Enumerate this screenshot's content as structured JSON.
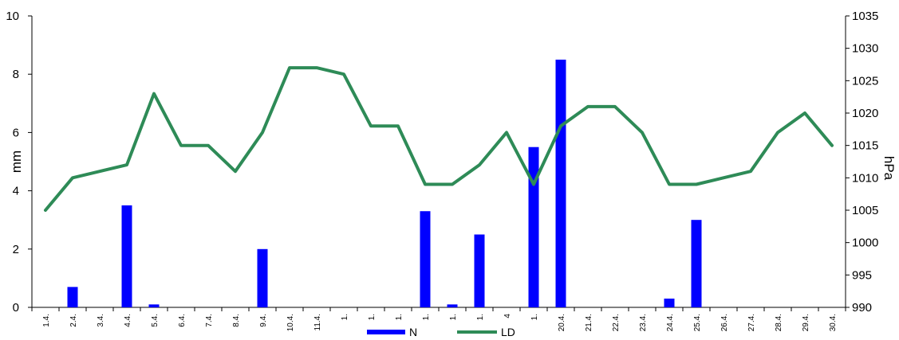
{
  "chart_data": {
    "type": "bar+line",
    "categories": [
      "1.4.",
      "2.4.",
      "3.4.",
      "4.4.",
      "5.4.",
      "6.4.",
      "7.4.",
      "8.4.",
      "9.4.",
      "10.4.",
      "11.4.",
      "1.",
      "1.",
      "1.",
      "1.",
      "1.",
      "1.",
      "4",
      "1.",
      "20.4.",
      "21.4.",
      "22.4.",
      "23.4.",
      "24.4.",
      "25.4.",
      "26.4.",
      "27.4.",
      "28.4.",
      "29.4.",
      "30.4."
    ],
    "series": [
      {
        "name": "N",
        "type": "bar",
        "axis": "left",
        "color": "#0000ff",
        "values": [
          0,
          0.7,
          0,
          3.5,
          0.1,
          0,
          0,
          0,
          2.0,
          0,
          0,
          0,
          0,
          0,
          3.3,
          0.1,
          2.5,
          0,
          5.5,
          8.5,
          0,
          0,
          0,
          0.3,
          3.0,
          0,
          0,
          0,
          0,
          0
        ]
      },
      {
        "name": "LD",
        "type": "line",
        "axis": "right",
        "color": "#2e8b57",
        "values": [
          1005,
          1010,
          1011,
          1012,
          1023,
          1015,
          1015,
          1011,
          1017,
          1027,
          1027,
          1026,
          1018,
          1018,
          1009,
          1009,
          1012,
          1017,
          1009,
          1018,
          1021,
          1021,
          1017,
          1009,
          1009,
          1010,
          1011,
          1017,
          1020,
          1015
        ]
      }
    ],
    "y_left": {
      "label": "mm",
      "min": 0,
      "max": 10,
      "ticks": [
        0,
        2,
        4,
        6,
        8,
        10
      ]
    },
    "y_right": {
      "label": "hPa",
      "min": 990,
      "max": 1035,
      "ticks": [
        990,
        995,
        1000,
        1005,
        1010,
        1015,
        1020,
        1025,
        1030,
        1035
      ]
    },
    "legend": {
      "position": "bottom"
    },
    "grid": false
  }
}
